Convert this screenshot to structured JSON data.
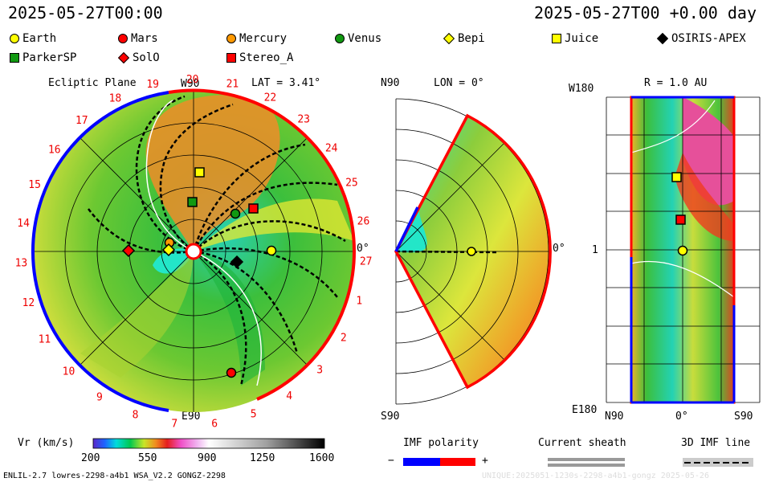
{
  "header": {
    "left_time": "2025-05-27T00:00",
    "right_time": "2025-05-27T00 +0.00 day"
  },
  "legend": [
    {
      "label": "Earth",
      "color": "#ffff00",
      "shape": "circle"
    },
    {
      "label": "Mars",
      "color": "#ff0000",
      "shape": "circle"
    },
    {
      "label": "Mercury",
      "color": "#ff9900",
      "shape": "circle"
    },
    {
      "label": "Venus",
      "color": "#119911",
      "shape": "circle"
    },
    {
      "label": "Bepi",
      "color": "#ffff00",
      "shape": "diamond"
    },
    {
      "label": "Juice",
      "color": "#ffff00",
      "shape": "square"
    },
    {
      "label": "OSIRIS-APEX",
      "color": "#000000",
      "shape": "diamond"
    },
    {
      "label": "ParkerSP",
      "color": "#119911",
      "shape": "square"
    },
    {
      "label": "SolO",
      "color": "#ff0000",
      "shape": "diamond"
    },
    {
      "label": "Stereo_A",
      "color": "#ff0000",
      "shape": "square"
    }
  ],
  "panel1": {
    "title": "Ecliptic Plane",
    "top_label": "W90",
    "bottom_label": "E90",
    "right_label": "0°",
    "lat": "LAT = 3.41°",
    "carrington": [
      "1",
      "2",
      "3",
      "4",
      "5",
      "6",
      "7",
      "8",
      "9",
      "10",
      "11",
      "12",
      "13",
      "14",
      "15",
      "16",
      "17",
      "18",
      "19",
      "20",
      "21",
      "22",
      "23",
      "24",
      "25",
      "26",
      "27"
    ]
  },
  "panel2": {
    "top_label": "N90",
    "bottom_label": "S90",
    "lon": "LON = 0°",
    "right_label": "0°"
  },
  "panel3": {
    "top_label": "W180",
    "bottom_label": "E180",
    "r": "R = 1.0 AU",
    "mid_label": "1",
    "x_left": "N90",
    "x_mid": "0°",
    "x_right": "S90"
  },
  "colorbar": {
    "label": "Vr (km/s)",
    "ticks": [
      "200",
      "550",
      "900",
      "1250",
      "1600"
    ]
  },
  "imf": {
    "label": "IMF polarity",
    "minus": "−",
    "plus": "+"
  },
  "sheath": {
    "label": "Current sheath"
  },
  "imfline": {
    "label": "3D IMF line"
  },
  "footer": {
    "left": "ENLIL-2.7 lowres-2298-a4b1 WSA_V2.2 GONGZ-2298",
    "right": "UNIQUE:2025051-1230s-2298-a4b1-gongz  2025-05-26"
  },
  "colors": {
    "orange": "#f07d1e",
    "green": "#3cb43c",
    "yellow": "#e8e832",
    "cyan": "#23e6c8",
    "red": "#ff0000",
    "blue": "#0000ff"
  }
}
